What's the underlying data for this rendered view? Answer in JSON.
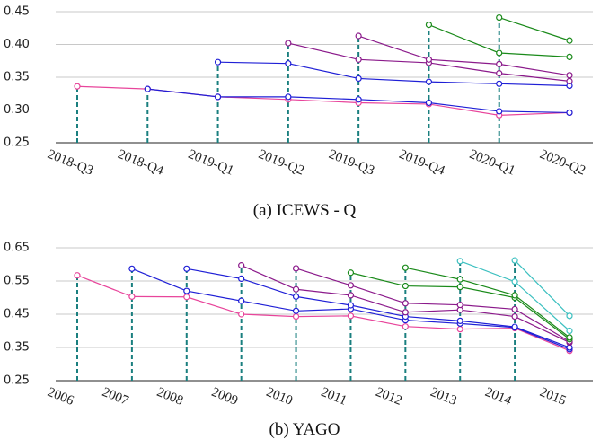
{
  "chart_data": [
    {
      "type": "line",
      "title": "(a) ICEWS - Q",
      "categories": [
        "2018-Q3",
        "2018-Q4",
        "2019-Q1",
        "2019-Q2",
        "2019-Q3",
        "2019-Q4",
        "2020-Q1",
        "2020-Q2"
      ],
      "ylim": [
        0.25,
        0.45
      ],
      "yticks": [
        0.25,
        {
          "value": 0.3,
          "label": "0.30"
        },
        0.35,
        {
          "value": 0.4,
          "label": "0.40"
        },
        0.45
      ],
      "grid": true,
      "series": [
        {
          "color": "#e8459b",
          "values": [
            0.336,
            0.332,
            0.32,
            0.316,
            0.311,
            0.309,
            0.292,
            0.296
          ]
        },
        {
          "color": "#1f1fd6",
          "values": [
            null,
            0.332,
            0.32,
            0.32,
            0.316,
            0.311,
            0.298,
            0.296
          ]
        },
        {
          "color": "#1f1fd6",
          "values": [
            null,
            null,
            0.373,
            0.371,
            0.348,
            0.343,
            0.34,
            0.337
          ]
        },
        {
          "color": "#8b1a8b",
          "values": [
            null,
            null,
            null,
            0.402,
            0.377,
            0.372,
            0.356,
            0.344
          ]
        },
        {
          "color": "#8b1a8b",
          "values": [
            null,
            null,
            null,
            null,
            0.413,
            0.377,
            0.37,
            0.353
          ]
        },
        {
          "color": "#1a8a1a",
          "values": [
            null,
            null,
            null,
            null,
            null,
            0.43,
            0.387,
            0.381
          ]
        },
        {
          "color": "#1a8a1a",
          "values": [
            null,
            null,
            null,
            null,
            null,
            null,
            0.441,
            0.406
          ]
        }
      ]
    },
    {
      "type": "line",
      "title": "(b) YAGO",
      "categories": [
        "2006",
        "2007",
        "2008",
        "2009",
        "2010",
        "2011",
        "2012",
        "2013",
        "2014",
        "2015"
      ],
      "ylim": [
        0.25,
        0.65
      ],
      "yticks": [
        0.25,
        0.35,
        0.45,
        0.55,
        0.65
      ],
      "grid": true,
      "series": [
        {
          "color": "#e8459b",
          "values": [
            0.567,
            0.503,
            0.502,
            0.45,
            0.443,
            0.445,
            0.413,
            0.405,
            0.408,
            0.34
          ]
        },
        {
          "color": "#1f1fd6",
          "values": [
            null,
            0.587,
            0.52,
            0.49,
            0.46,
            0.466,
            0.432,
            0.422,
            0.41,
            0.345
          ]
        },
        {
          "color": "#1f1fd6",
          "values": [
            null,
            null,
            0.587,
            0.557,
            0.503,
            0.477,
            0.443,
            0.43,
            0.412,
            0.35
          ]
        },
        {
          "color": "#8b1a8b",
          "values": [
            null,
            null,
            null,
            0.597,
            0.525,
            0.507,
            0.456,
            0.463,
            0.443,
            0.365
          ]
        },
        {
          "color": "#8b1a8b",
          "values": [
            null,
            null,
            null,
            null,
            0.588,
            0.537,
            0.483,
            0.478,
            0.465,
            0.368
          ]
        },
        {
          "color": "#1a8a1a",
          "values": [
            null,
            null,
            null,
            null,
            null,
            0.575,
            0.535,
            0.532,
            0.5,
            0.375
          ]
        },
        {
          "color": "#1a8a1a",
          "values": [
            null,
            null,
            null,
            null,
            null,
            null,
            0.59,
            0.555,
            0.507,
            0.38
          ]
        },
        {
          "color": "#3cc0c0",
          "values": [
            null,
            null,
            null,
            null,
            null,
            null,
            null,
            0.61,
            0.548,
            0.4
          ]
        },
        {
          "color": "#3cc0c0",
          "values": [
            null,
            null,
            null,
            null,
            null,
            null,
            null,
            null,
            0.612,
            0.445
          ]
        }
      ]
    }
  ]
}
